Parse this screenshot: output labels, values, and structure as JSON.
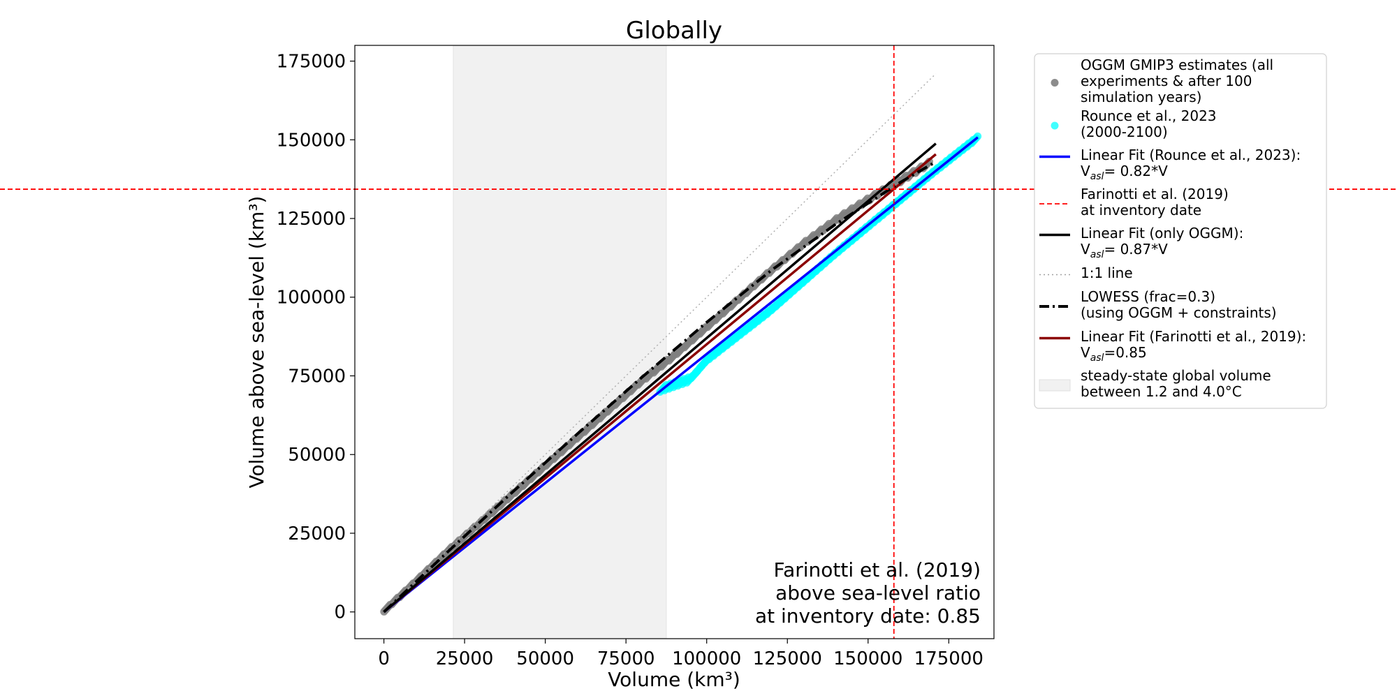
{
  "chart_data": {
    "type": "scatter",
    "title": "Globally",
    "xlabel": "Volume (km³)",
    "ylabel": "Volume above sea-level (km³)",
    "xlim": [
      -9000,
      189000
    ],
    "ylim": [
      -8500,
      180000
    ],
    "xticks": [
      0,
      25000,
      50000,
      75000,
      100000,
      125000,
      150000,
      175000
    ],
    "yticks": [
      0,
      25000,
      50000,
      75000,
      100000,
      125000,
      150000,
      175000
    ],
    "shaded_region": {
      "x": [
        21500,
        87500
      ],
      "color": "#f1f1f1"
    },
    "reference_lines": {
      "vertical_x": 158000,
      "horizontal_y": 134300,
      "color": "#ff0000"
    },
    "annotation": [
      "Farinotti et al. (2019)",
      "above sea-level ratio",
      "at inventory date: 0.85"
    ],
    "series": [
      {
        "name": "OGGM GMIP3 estimates (all experiments & after 100 simulation years)",
        "kind": "scatter-band",
        "color": "#808080",
        "points": [
          [
            1000,
            1200
          ],
          [
            5000,
            5000
          ],
          [
            10000,
            9800
          ],
          [
            20000,
            19500
          ],
          [
            30000,
            28500
          ],
          [
            40000,
            37500
          ],
          [
            50000,
            46500
          ],
          [
            60000,
            55500
          ],
          [
            70000,
            64500
          ],
          [
            80000,
            73500
          ],
          [
            90000,
            81500
          ],
          [
            100000,
            90500
          ],
          [
            110000,
            99500
          ],
          [
            120000,
            108500
          ],
          [
            130000,
            117000
          ],
          [
            140000,
            124500
          ],
          [
            150000,
            131000
          ],
          [
            160000,
            137000
          ],
          [
            168000,
            142000
          ]
        ]
      },
      {
        "name": "Rounce et al., 2023 (2000-2100)",
        "kind": "scatter-band",
        "color": "#00ffff",
        "points": [
          [
            86500,
            71000
          ],
          [
            95000,
            74000
          ],
          [
            100000,
            80000
          ],
          [
            110000,
            88000
          ],
          [
            120000,
            96000
          ],
          [
            130000,
            105000
          ],
          [
            140000,
            114000
          ],
          [
            150000,
            122500
          ],
          [
            160000,
            131000
          ],
          [
            170000,
            139500
          ],
          [
            178000,
            146000
          ],
          [
            183000,
            150000
          ]
        ]
      },
      {
        "name": "Linear Fit (Rounce et al., 2023):",
        "label_suffix": "= 0.82*V",
        "kind": "line",
        "color": "#0000ff",
        "points": [
          [
            0,
            0
          ],
          [
            184000,
            150800
          ]
        ]
      },
      {
        "name": "Farinotti et al. (2019) at inventory date",
        "kind": "reference",
        "color": "#ff0000"
      },
      {
        "name": "Linear Fit (only OGGM):",
        "label_suffix": "= 0.87*V",
        "kind": "line",
        "color": "#000000",
        "points": [
          [
            0,
            0
          ],
          [
            171000,
            148800
          ]
        ]
      },
      {
        "name": "1:1 line",
        "kind": "line",
        "color": "#b0b0b0",
        "points": [
          [
            0,
            0
          ],
          [
            171000,
            171000
          ]
        ]
      },
      {
        "name": "LOWESS (frac=0.3) (using OGGM + constraints)",
        "kind": "line",
        "color": "#000000",
        "points": [
          [
            0,
            0
          ],
          [
            20000,
            19300
          ],
          [
            40000,
            38200
          ],
          [
            60000,
            56600
          ],
          [
            80000,
            74600
          ],
          [
            100000,
            92000
          ],
          [
            120000,
            108500
          ],
          [
            140000,
            123200
          ],
          [
            160000,
            136500
          ],
          [
            171000,
            143000
          ]
        ]
      },
      {
        "name": "Linear Fit (Farinotti et al., 2019):",
        "label_suffix": "=0.85",
        "kind": "line",
        "color": "#8b0000",
        "points": [
          [
            0,
            0
          ],
          [
            171000,
            145400
          ]
        ]
      },
      {
        "name": "steady-state global volume between 1.2 and 4.0°C",
        "kind": "region",
        "color": "#f1f1f1"
      }
    ]
  },
  "legend": {
    "items": [
      {
        "lines": [
          "OGGM GMIP3 estimates (all",
          "experiments & after 100",
          "simulation years)"
        ]
      },
      {
        "lines": [
          "Rounce et al., 2023",
          "(2000-2100)"
        ]
      },
      {
        "lines": [
          "Linear Fit (Rounce et al., 2023):"
        ],
        "v_suffix": "= 0.82*V"
      },
      {
        "lines": [
          "Farinotti et al. (2019)",
          "at inventory date"
        ]
      },
      {
        "lines": [
          "Linear Fit (only OGGM):"
        ],
        "v_suffix": "= 0.87*V"
      },
      {
        "lines": [
          "1:1 line"
        ]
      },
      {
        "lines": [
          "LOWESS (frac=0.3)",
          "(using OGGM + constraints)"
        ]
      },
      {
        "lines": [
          "Linear Fit (Farinotti et al., 2019):"
        ],
        "v_suffix": "=0.85"
      },
      {
        "lines": [
          "steady-state global volume",
          "between 1.2 and 4.0°C"
        ]
      }
    ],
    "v_base": "V",
    "v_sub": "asl"
  }
}
